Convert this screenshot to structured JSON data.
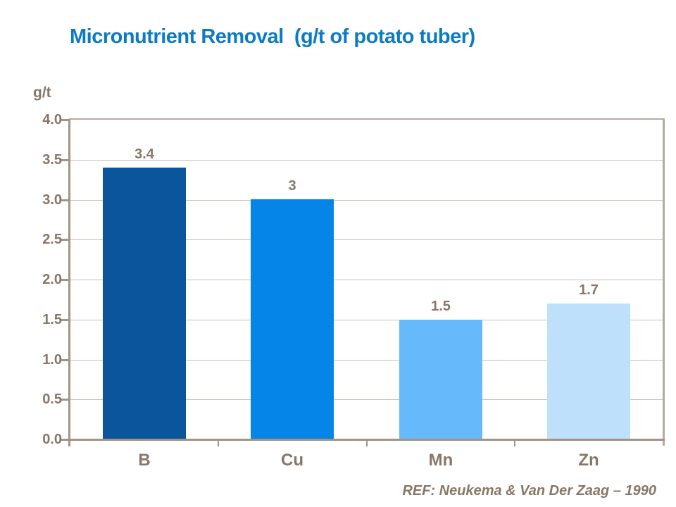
{
  "slide": {
    "title": "Micronutrient Removal  (g/t of potato tuber)",
    "reference": "REF: Neukema & Van Der Zaag – 1990"
  },
  "chart_data": {
    "type": "bar",
    "title": "Micronutrient Removal (g/t of potato tuber)",
    "xlabel": "",
    "ylabel": "g/t",
    "categories": [
      "B",
      "Cu",
      "Mn",
      "Zn"
    ],
    "values": [
      3.4,
      3,
      1.5,
      1.7
    ],
    "value_labels": [
      "3.4",
      "3",
      "1.5",
      "1.7"
    ],
    "bar_colors": [
      "#0A559C",
      "#0685E9",
      "#66B9FA",
      "#BEE0FB"
    ],
    "ylim": [
      0,
      4
    ],
    "ytick_step": 0.5,
    "ytick_labels": [
      "0.0",
      "0.5",
      "1.0",
      "1.5",
      "2.0",
      "2.5",
      "3.0",
      "3.5",
      "4.0"
    ],
    "grid": true,
    "legend_position": "none"
  },
  "colors": {
    "background": "#FFFFFF",
    "title_text": "#0C7BC4",
    "label_text": "#877767",
    "axis_line": "#A29485",
    "frame_line": "#B5ABA0",
    "gridline": "#C9C0B5"
  }
}
